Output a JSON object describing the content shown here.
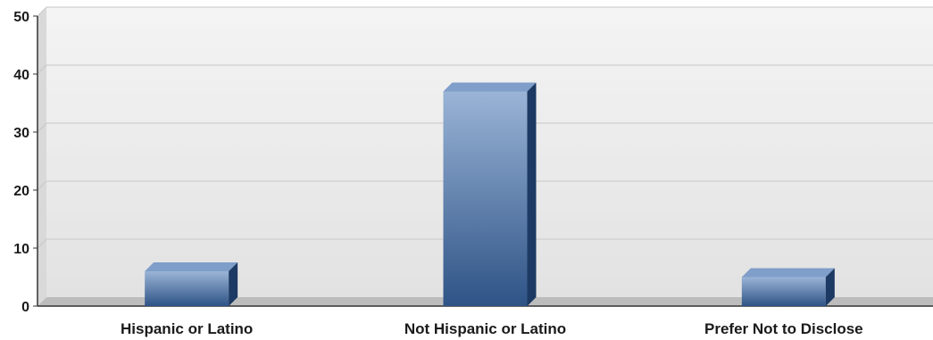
{
  "chart_data": {
    "type": "bar",
    "title": "",
    "xlabel": "",
    "ylabel": "",
    "categories": [
      "Hispanic or Latino",
      "Not Hispanic or Latino",
      "Prefer Not to Disclose"
    ],
    "values": [
      6,
      37,
      5
    ],
    "ylim": [
      0,
      50
    ],
    "yticks": [
      0,
      10,
      20,
      30,
      40,
      50
    ],
    "grid": true,
    "legend": "none",
    "style": "3d",
    "colors": {
      "bar_front_top": "#9ab4d6",
      "bar_front_bottom": "#2e5386",
      "bar_top": "#7f9ec9",
      "bar_side": "#1c3a63",
      "plot_bg_top": "#f4f4f4",
      "plot_bg_bottom": "#e2e2e2",
      "gridline": "#c8c8c8",
      "floor": "#bdbdbd"
    }
  }
}
